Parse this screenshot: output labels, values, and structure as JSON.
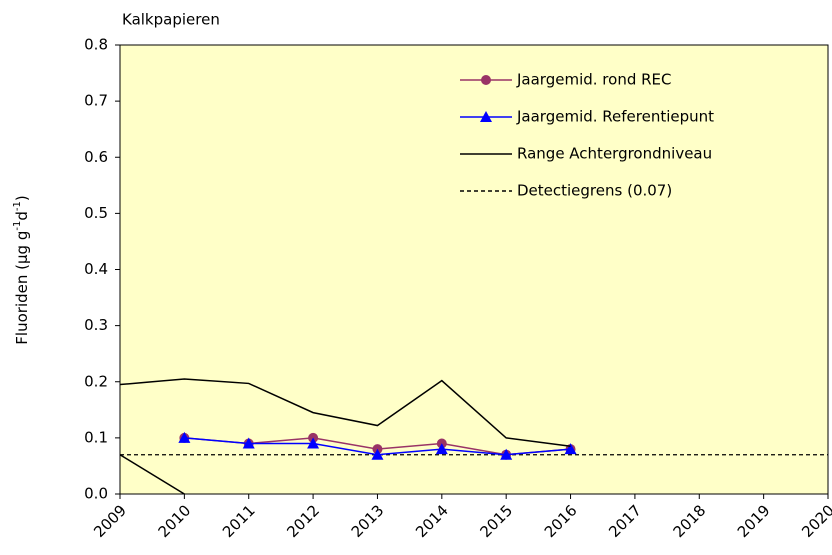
{
  "chart_data": {
    "type": "line",
    "title": "Kalkpapieren",
    "y_label_parts": [
      "Fluoriden  (µg g",
      "-1",
      "d",
      "-1",
      ")"
    ],
    "x": [
      2009,
      2010,
      2011,
      2012,
      2013,
      2014,
      2015,
      2016
    ],
    "xlim": [
      2009,
      2020
    ],
    "xticks": [
      2009,
      2010,
      2011,
      2012,
      2013,
      2014,
      2015,
      2016,
      2017,
      2018,
      2019,
      2020
    ],
    "ylim": [
      0,
      0.8
    ],
    "yticks": [
      {
        "value": 0,
        "label": "0.0"
      },
      0.1,
      0.2,
      0.3,
      0.4,
      0.5,
      0.6,
      0.7,
      0.8
    ],
    "plot_background": "#ffffc8",
    "series": [
      {
        "name": "Jaargemid. rond REC",
        "color": "#993366",
        "marker": "circle",
        "values": [
          null,
          0.1,
          0.09,
          0.1,
          0.08,
          0.09,
          0.07,
          0.08
        ]
      },
      {
        "name": "Jaargemid. Referentiepunt",
        "color": "#0000ff",
        "marker": "triangle",
        "values": [
          null,
          0.1,
          0.09,
          0.09,
          0.07,
          0.08,
          0.07,
          0.08
        ]
      },
      {
        "name": "Range Achtergrondniveau",
        "color": "#000000",
        "marker": "none",
        "values": [
          0.195,
          0.205,
          0.197,
          0.145,
          0.122,
          0.202,
          0.1,
          0.085
        ],
        "lower_values": [
          0.07,
          0,
          null,
          null,
          null,
          null,
          null,
          null
        ]
      }
    ],
    "reference_line": {
      "name": "Detectiegrens (0.07)",
      "value": 0.07,
      "color": "#000000",
      "dashed": true
    },
    "legend": "upper-right"
  }
}
